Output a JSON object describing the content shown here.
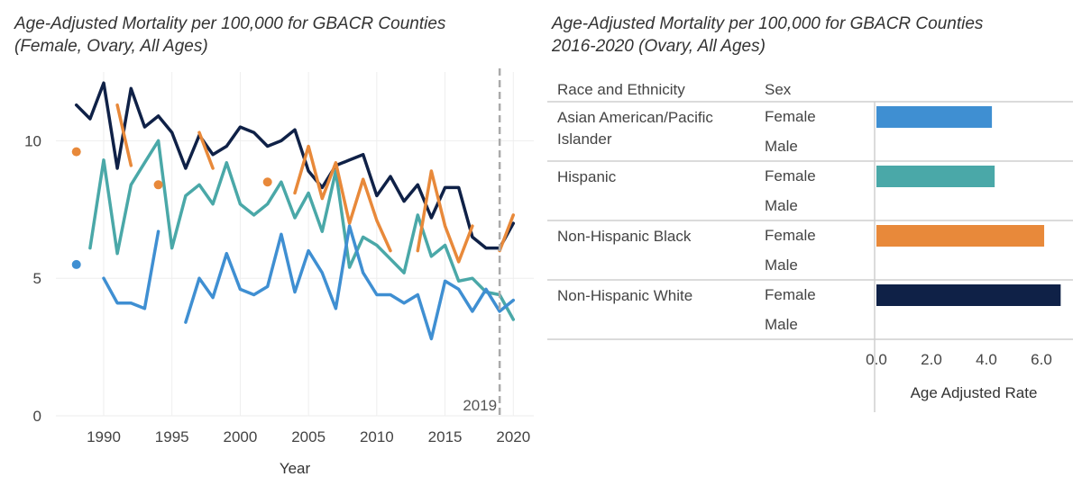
{
  "left_chart": {
    "title_line1": "Age-Adjusted Mortality per 100,000 for GBACR Counties",
    "title_line2": "(Female, Ovary, All Ages)",
    "xlabel": "Year",
    "annotation": "2019",
    "x_ticks": [
      1990,
      1995,
      2000,
      2005,
      2010,
      2015,
      2020
    ],
    "y_ticks": [
      0,
      5,
      10
    ]
  },
  "right_chart": {
    "title_line1": "Age-Adjusted Mortality per 100,000 for GBACR Counties",
    "title_line2": "2016-2020 (Ovary, All Ages)",
    "col_race": "Race and Ethnicity",
    "col_sex": "Sex",
    "xlabel": "Age Adjusted Rate",
    "x_ticks": [
      "0.0",
      "2.0",
      "4.0",
      "6.0"
    ]
  },
  "colors": {
    "aapi": "#3f8fd2",
    "hispanic": "#4aa8a8",
    "black": "#e8893a",
    "white": "#0f2147",
    "grid": "#eeeeee",
    "refline": "#aaaaaa"
  },
  "chart_data": [
    {
      "type": "line",
      "title": "Age-Adjusted Mortality per 100,000 for GBACR Counties (Female, Ovary, All Ages)",
      "xlabel": "Year",
      "ylabel": "",
      "xlim": [
        1986.5,
        2021.5
      ],
      "ylim": [
        0,
        12.5
      ],
      "grid": true,
      "reference_line": {
        "x": 2019,
        "label": "2019"
      },
      "x": [
        1988,
        1989,
        1990,
        1991,
        1992,
        1993,
        1994,
        1995,
        1996,
        1997,
        1998,
        1999,
        2000,
        2001,
        2002,
        2003,
        2004,
        2005,
        2006,
        2007,
        2008,
        2009,
        2010,
        2011,
        2012,
        2013,
        2014,
        2015,
        2016,
        2017,
        2018,
        2019,
        2020
      ],
      "series": [
        {
          "key": "white",
          "values": [
            11.3,
            10.8,
            12.1,
            9.0,
            11.9,
            10.5,
            10.9,
            10.3,
            9.0,
            10.2,
            9.5,
            9.8,
            10.5,
            10.3,
            9.8,
            10.0,
            10.4,
            8.9,
            8.3,
            9.1,
            9.3,
            9.5,
            8.0,
            8.7,
            7.8,
            8.4,
            7.2,
            8.3,
            8.3,
            6.5,
            6.1,
            6.1,
            7.0
          ]
        },
        {
          "key": "hispanic",
          "values": [
            null,
            6.1,
            9.3,
            5.9,
            8.4,
            9.2,
            10.0,
            6.1,
            8.0,
            8.4,
            7.7,
            9.2,
            7.7,
            7.3,
            7.7,
            8.5,
            7.2,
            8.1,
            6.7,
            8.9,
            5.4,
            6.5,
            6.2,
            5.7,
            5.2,
            7.3,
            5.8,
            6.2,
            4.9,
            5.0,
            4.5,
            4.4,
            3.5
          ]
        },
        {
          "key": "black",
          "values": [
            9.6,
            null,
            null,
            11.3,
            9.1,
            null,
            8.4,
            null,
            null,
            10.3,
            9.0,
            null,
            null,
            null,
            8.5,
            null,
            8.1,
            9.8,
            7.9,
            9.2,
            7.0,
            8.6,
            7.1,
            6.0,
            null,
            6.0,
            8.9,
            6.9,
            5.6,
            6.9,
            null,
            6.0,
            7.3
          ]
        },
        {
          "key": "aapi",
          "values": [
            5.5,
            null,
            5.0,
            4.1,
            4.1,
            3.9,
            6.7,
            null,
            3.4,
            5.0,
            4.3,
            5.9,
            4.6,
            4.4,
            4.7,
            6.6,
            4.5,
            6.0,
            5.2,
            3.9,
            6.9,
            5.2,
            4.4,
            4.4,
            4.1,
            4.4,
            2.8,
            4.9,
            4.6,
            3.8,
            4.6,
            3.8,
            4.2
          ]
        }
      ]
    },
    {
      "type": "bar",
      "title": "Age-Adjusted Mortality per 100,000 for GBACR Counties 2016-2020 (Ovary, All Ages)",
      "xlabel": "Age Adjusted Rate",
      "xlim": [
        0,
        7.0
      ],
      "rows": [
        {
          "race": "Asian American/Pacific Islander",
          "race_line1": "Asian American/Pacific",
          "race_line2": "Islander",
          "key": "aapi",
          "sex": [
            "Female",
            "Male"
          ],
          "female_value": 4.2
        },
        {
          "race": "Hispanic",
          "race_line1": "Hispanic",
          "race_line2": "",
          "key": "hispanic",
          "sex": [
            "Female",
            "Male"
          ],
          "female_value": 4.3
        },
        {
          "race": "Non-Hispanic Black",
          "race_line1": "Non-Hispanic Black",
          "race_line2": "",
          "key": "black",
          "sex": [
            "Female",
            "Male"
          ],
          "female_value": 6.1
        },
        {
          "race": "Non-Hispanic White",
          "race_line1": "Non-Hispanic White",
          "race_line2": "",
          "key": "white",
          "sex": [
            "Female",
            "Male"
          ],
          "female_value": 6.7
        }
      ]
    }
  ]
}
